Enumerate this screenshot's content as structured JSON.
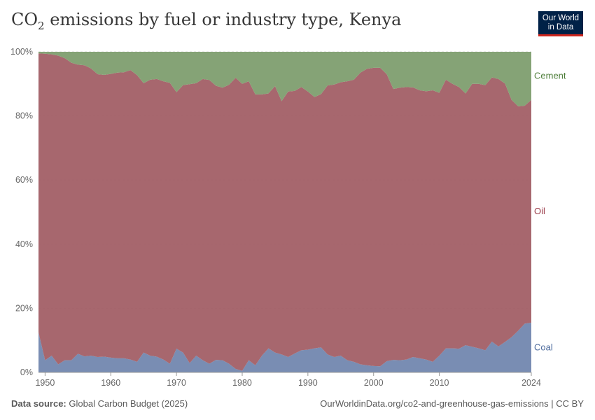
{
  "title": {
    "main": "CO",
    "sub": "2",
    "rest": " emissions by fuel or industry type, Kenya"
  },
  "logo": {
    "line1": "Our World",
    "line2": "in Data"
  },
  "footer": {
    "source_label": "Data source:",
    "source": "Global Carbon Budget (2025)",
    "url": "OurWorldinData.org/co2-and-greenhouse-gas-emissions | CC BY"
  },
  "colors": {
    "coal": "#6e83ad",
    "oil": "#a05a62",
    "cement": "#7b9b6a",
    "coal_label": "#4c6a9c",
    "oil_label": "#9a3a48",
    "cement_label": "#4e7e3a"
  },
  "chart_data": {
    "type": "area",
    "stacked": true,
    "normalized": true,
    "title": "CO₂ emissions by fuel or industry type, Kenya",
    "xlabel": "",
    "ylabel": "",
    "xlim": [
      1949,
      2024
    ],
    "ylim": [
      0,
      100
    ],
    "xticks": [
      1950,
      1960,
      1970,
      1980,
      1990,
      2000,
      2010,
      2024
    ],
    "yticks": [
      0,
      20,
      40,
      60,
      80,
      100
    ],
    "ytick_labels": [
      "0%",
      "20%",
      "40%",
      "60%",
      "80%",
      "100%"
    ],
    "x": [
      1949,
      1950,
      1951,
      1952,
      1953,
      1954,
      1955,
      1956,
      1957,
      1958,
      1959,
      1960,
      1961,
      1962,
      1963,
      1964,
      1965,
      1966,
      1967,
      1968,
      1969,
      1970,
      1971,
      1972,
      1973,
      1974,
      1975,
      1976,
      1977,
      1978,
      1979,
      1980,
      1981,
      1982,
      1983,
      1984,
      1985,
      1986,
      1987,
      1988,
      1989,
      1990,
      1991,
      1992,
      1993,
      1994,
      1995,
      1996,
      1997,
      1998,
      1999,
      2000,
      2001,
      2002,
      2003,
      2004,
      2005,
      2006,
      2007,
      2008,
      2009,
      2010,
      2011,
      2012,
      2013,
      2014,
      2015,
      2016,
      2017,
      2018,
      2019,
      2020,
      2021,
      2022,
      2023,
      2024
    ],
    "series": [
      {
        "name": "Coal",
        "values": [
          12.5,
          3.8,
          5.2,
          2.5,
          3.8,
          3.8,
          5.8,
          5.0,
          5.2,
          4.8,
          4.9,
          4.6,
          4.4,
          4.4,
          4.0,
          3.3,
          6.2,
          5.2,
          4.9,
          4.0,
          2.7,
          7.4,
          6.2,
          2.9,
          5.2,
          3.8,
          2.7,
          3.9,
          3.8,
          2.7,
          1.1,
          0.5,
          3.8,
          2.2,
          5.2,
          7.5,
          6.2,
          5.6,
          4.8,
          5.9,
          6.9,
          7.1,
          7.5,
          7.8,
          5.6,
          4.8,
          5.2,
          3.8,
          3.3,
          2.5,
          2.2,
          2.0,
          1.9,
          3.5,
          3.9,
          3.8,
          4.0,
          4.8,
          4.4,
          4.0,
          3.3,
          5.2,
          7.5,
          7.5,
          7.4,
          8.5,
          8.0,
          7.5,
          6.9,
          9.6,
          8.1,
          9.5,
          11.0,
          13.0,
          15.2,
          15.5
        ]
      },
      {
        "name": "Oil",
        "values": [
          87.0,
          95.6,
          94.0,
          96.3,
          94.2,
          92.8,
          90.2,
          90.8,
          89.6,
          88.2,
          87.9,
          88.5,
          89.1,
          89.2,
          90.3,
          89.4,
          84.0,
          86.1,
          86.6,
          86.8,
          87.6,
          80.0,
          83.4,
          87.0,
          85.0,
          87.7,
          88.5,
          85.5,
          85.0,
          87.0,
          90.8,
          89.5,
          87.0,
          84.5,
          81.5,
          79.5,
          83.1,
          79.0,
          82.8,
          81.9,
          82.1,
          80.5,
          78.4,
          79.0,
          83.9,
          85.0,
          85.3,
          87.0,
          88.0,
          91.0,
          92.5,
          93.0,
          93.1,
          89.5,
          84.5,
          85.0,
          85.0,
          84.1,
          83.6,
          83.7,
          84.7,
          82.0,
          83.8,
          82.5,
          81.6,
          78.5,
          82.0,
          82.5,
          82.7,
          82.4,
          83.4,
          80.6,
          74.0,
          70.0,
          68.0,
          69.5
        ]
      },
      {
        "name": "Cement",
        "values": [
          0.5,
          0.6,
          0.8,
          1.2,
          2.0,
          3.4,
          4.0,
          4.2,
          5.2,
          7.0,
          7.2,
          6.9,
          6.5,
          6.4,
          5.7,
          7.3,
          9.8,
          8.7,
          8.5,
          9.2,
          9.7,
          12.6,
          10.4,
          10.1,
          9.8,
          8.5,
          8.8,
          10.6,
          11.2,
          10.3,
          8.1,
          10.0,
          9.2,
          13.3,
          13.3,
          13.0,
          10.7,
          15.4,
          12.4,
          12.2,
          11.0,
          12.4,
          14.1,
          13.2,
          10.5,
          10.2,
          9.5,
          9.2,
          8.7,
          6.5,
          5.3,
          5.0,
          5.0,
          7.0,
          11.6,
          11.2,
          11.0,
          11.1,
          12.0,
          12.3,
          12.0,
          12.8,
          8.7,
          10.0,
          11.0,
          13.0,
          10.0,
          10.0,
          10.4,
          8.0,
          8.5,
          9.9,
          15.0,
          17.0,
          16.8,
          15.0
        ]
      }
    ]
  }
}
